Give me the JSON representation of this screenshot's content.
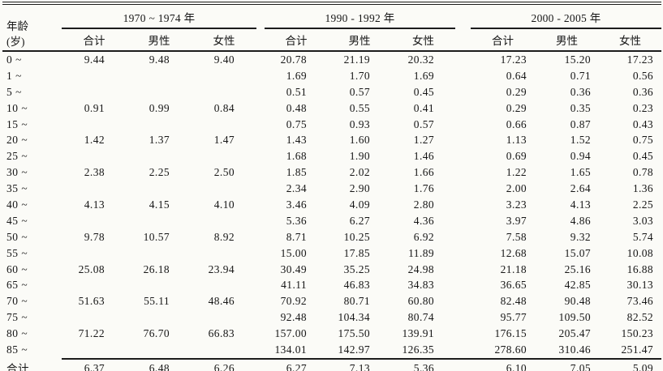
{
  "colors": {
    "paper_background": "#fbfbf7",
    "ink": "#161616",
    "rule_lines": "#1c1c1c"
  },
  "table": {
    "age_header": {
      "line1": "年龄",
      "line2": "(岁)"
    },
    "period_headers": [
      "1970 ~ 1974 年",
      "1990 - 1992 年",
      "2000 - 2005 年"
    ],
    "sub_headers": [
      "合计",
      "男性",
      "女性"
    ],
    "rows": [
      {
        "age": "0 ~",
        "values": [
          "9.44",
          "9.48",
          "9.40",
          "20.78",
          "21.19",
          "20.32",
          "17.23",
          "15.20",
          "17.23"
        ]
      },
      {
        "age": "1 ~",
        "values": [
          "",
          "",
          "",
          "1.69",
          "1.70",
          "1.69",
          "0.64",
          "0.71",
          "0.56"
        ]
      },
      {
        "age": "5 ~",
        "values": [
          "",
          "",
          "",
          "0.51",
          "0.57",
          "0.45",
          "0.29",
          "0.36",
          "0.36"
        ]
      },
      {
        "age": "10 ~",
        "values": [
          "0.91",
          "0.99",
          "0.84",
          "0.48",
          "0.55",
          "0.41",
          "0.29",
          "0.35",
          "0.23"
        ]
      },
      {
        "age": "15 ~",
        "values": [
          "",
          "",
          "",
          "0.75",
          "0.93",
          "0.57",
          "0.66",
          "0.87",
          "0.43"
        ]
      },
      {
        "age": "20 ~",
        "values": [
          "1.42",
          "1.37",
          "1.47",
          "1.43",
          "1.60",
          "1.27",
          "1.13",
          "1.52",
          "0.75"
        ]
      },
      {
        "age": "25 ~",
        "values": [
          "",
          "",
          "",
          "1.68",
          "1.90",
          "1.46",
          "0.69",
          "0.94",
          "0.45"
        ]
      },
      {
        "age": "30 ~",
        "values": [
          "2.38",
          "2.25",
          "2.50",
          "1.85",
          "2.02",
          "1.66",
          "1.22",
          "1.65",
          "0.78"
        ]
      },
      {
        "age": "35 ~",
        "values": [
          "",
          "",
          "",
          "2.34",
          "2.90",
          "1.76",
          "2.00",
          "2.64",
          "1.36"
        ]
      },
      {
        "age": "40 ~",
        "values": [
          "4.13",
          "4.15",
          "4.10",
          "3.46",
          "4.09",
          "2.80",
          "3.23",
          "4.13",
          "2.25"
        ]
      },
      {
        "age": "45 ~",
        "values": [
          "",
          "",
          "",
          "5.36",
          "6.27",
          "4.36",
          "3.97",
          "4.86",
          "3.03"
        ]
      },
      {
        "age": "50 ~",
        "values": [
          "9.78",
          "10.57",
          "8.92",
          "8.71",
          "10.25",
          "6.92",
          "7.58",
          "9.32",
          "5.74"
        ]
      },
      {
        "age": "55 ~",
        "values": [
          "",
          "",
          "",
          "15.00",
          "17.85",
          "11.89",
          "12.68",
          "15.07",
          "10.08"
        ]
      },
      {
        "age": "60 ~",
        "values": [
          "25.08",
          "26.18",
          "23.94",
          "30.49",
          "35.25",
          "24.98",
          "21.18",
          "25.16",
          "16.88"
        ]
      },
      {
        "age": "65 ~",
        "values": [
          "",
          "",
          "",
          "41.11",
          "46.83",
          "34.83",
          "36.65",
          "42.85",
          "30.13"
        ]
      },
      {
        "age": "70 ~",
        "values": [
          "51.63",
          "55.11",
          "48.46",
          "70.92",
          "80.71",
          "60.80",
          "82.48",
          "90.48",
          "73.46"
        ]
      },
      {
        "age": "75 ~",
        "values": [
          "",
          "",
          "",
          "92.48",
          "104.34",
          "80.74",
          "95.77",
          "109.50",
          "82.52"
        ]
      },
      {
        "age": "80 ~",
        "values": [
          "71.22",
          "76.70",
          "66.83",
          "157.00",
          "175.50",
          "139.91",
          "176.15",
          "205.47",
          "150.23"
        ]
      },
      {
        "age": "85 ~",
        "values": [
          "",
          "",
          "",
          "134.01",
          "142.97",
          "126.35",
          "278.60",
          "310.46",
          "251.47"
        ]
      },
      {
        "age": "合计",
        "total": true,
        "values": [
          "6.37",
          "6.48",
          "6.26",
          "6.27",
          "7.13",
          "5.36",
          "6.10",
          "7.05",
          "5.09"
        ]
      }
    ]
  }
}
